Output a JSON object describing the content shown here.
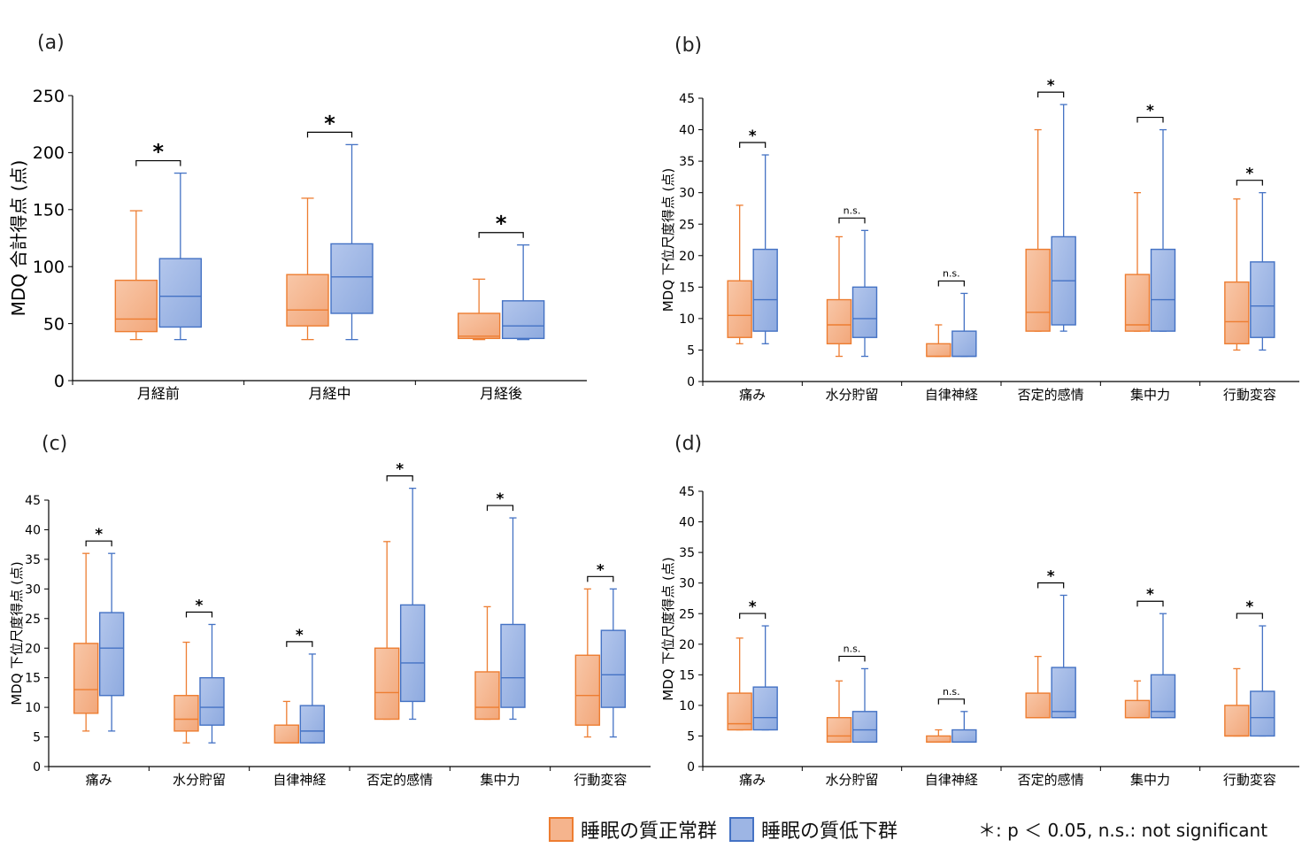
{
  "colors": {
    "normal_fill": "#f5b48d",
    "normal_stroke": "#ed7d31",
    "low_fill": "#9db5e4",
    "low_stroke": "#4472c4"
  },
  "legend": {
    "normal": "睡眠の質正常群",
    "low": "睡眠の質低下群"
  },
  "footnote": "＊: p ＜ 0.05,  n.s.: not significant",
  "chart_data": [
    {
      "type": "box",
      "panel_label": "(a)",
      "ylabel": "MDQ 合計得点 (点)",
      "ylim": [
        0,
        250
      ],
      "yticks": [
        0,
        50,
        100,
        150,
        200,
        250
      ],
      "categories": [
        "月経前",
        "月経中",
        "月経後"
      ],
      "significance": [
        "*",
        "*",
        "*"
      ],
      "series": [
        {
          "group": "normal",
          "boxes": [
            {
              "min": 36,
              "q1": 43,
              "median": 54,
              "q3": 88,
              "max": 149
            },
            {
              "min": 36,
              "q1": 48,
              "median": 62,
              "q3": 93,
              "max": 160
            },
            {
              "min": 36,
              "q1": 37,
              "median": 39,
              "q3": 59,
              "max": 89
            }
          ]
        },
        {
          "group": "low",
          "boxes": [
            {
              "min": 36,
              "q1": 47,
              "median": 74,
              "q3": 107,
              "max": 182
            },
            {
              "min": 36,
              "q1": 59,
              "median": 91,
              "q3": 120,
              "max": 207
            },
            {
              "min": 36,
              "q1": 37,
              "median": 48,
              "q3": 70,
              "max": 119
            }
          ]
        }
      ]
    },
    {
      "type": "box",
      "panel_label": "(b)",
      "ylabel": "MDQ 下位尺度得点 (点)",
      "ylim": [
        0,
        45
      ],
      "yticks": [
        0,
        5,
        10,
        15,
        20,
        25,
        30,
        35,
        40,
        45
      ],
      "categories": [
        "痛み",
        "水分貯留",
        "自律神経",
        "否定的感情",
        "集中力",
        "行動変容"
      ],
      "significance": [
        "*",
        "n.s.",
        "n.s.",
        "*",
        "*",
        "*"
      ],
      "series": [
        {
          "group": "normal",
          "boxes": [
            {
              "min": 6,
              "q1": 7,
              "median": 10.5,
              "q3": 16,
              "max": 28
            },
            {
              "min": 4,
              "q1": 6,
              "median": 9,
              "q3": 13,
              "max": 23
            },
            {
              "min": 4,
              "q1": 4,
              "median": 4,
              "q3": 6,
              "max": 9
            },
            {
              "min": 8,
              "q1": 8,
              "median": 11,
              "q3": 21,
              "max": 40
            },
            {
              "min": 8,
              "q1": 8,
              "median": 9,
              "q3": 17,
              "max": 30
            },
            {
              "min": 5,
              "q1": 6,
              "median": 9.5,
              "q3": 15.8,
              "max": 29
            }
          ]
        },
        {
          "group": "low",
          "boxes": [
            {
              "min": 6,
              "q1": 8,
              "median": 13,
              "q3": 21,
              "max": 36
            },
            {
              "min": 4,
              "q1": 7,
              "median": 10,
              "q3": 15,
              "max": 24
            },
            {
              "min": 4,
              "q1": 4,
              "median": 4,
              "q3": 8,
              "max": 14
            },
            {
              "min": 8,
              "q1": 9,
              "median": 16,
              "q3": 23,
              "max": 44
            },
            {
              "min": 8,
              "q1": 8,
              "median": 13,
              "q3": 21,
              "max": 40
            },
            {
              "min": 5,
              "q1": 7,
              "median": 12,
              "q3": 19,
              "max": 30
            }
          ]
        }
      ]
    },
    {
      "type": "box",
      "panel_label": "(c)",
      "ylabel": "MDQ 下位尺度得点 (点)",
      "ylim": [
        0,
        45
      ],
      "yticks": [
        0,
        5,
        10,
        15,
        20,
        25,
        30,
        35,
        40,
        45
      ],
      "categories": [
        "痛み",
        "水分貯留",
        "自律神経",
        "否定的感情",
        "集中力",
        "行動変容"
      ],
      "significance": [
        "*",
        "*",
        "*",
        "*",
        "*",
        "*"
      ],
      "series": [
        {
          "group": "normal",
          "boxes": [
            {
              "min": 6,
              "q1": 9,
              "median": 13,
              "q3": 20.8,
              "max": 36
            },
            {
              "min": 4,
              "q1": 6,
              "median": 8,
              "q3": 12,
              "max": 21
            },
            {
              "min": 4,
              "q1": 4,
              "median": 4,
              "q3": 7,
              "max": 11
            },
            {
              "min": 8,
              "q1": 8,
              "median": 12.5,
              "q3": 20,
              "max": 38
            },
            {
              "min": 8,
              "q1": 8,
              "median": 10,
              "q3": 16,
              "max": 27
            },
            {
              "min": 5,
              "q1": 7,
              "median": 12,
              "q3": 18.8,
              "max": 30
            }
          ]
        },
        {
          "group": "low",
          "boxes": [
            {
              "min": 6,
              "q1": 12,
              "median": 20,
              "q3": 26,
              "max": 36
            },
            {
              "min": 4,
              "q1": 7,
              "median": 10,
              "q3": 15,
              "max": 24
            },
            {
              "min": 4,
              "q1": 4,
              "median": 6,
              "q3": 10.3,
              "max": 19
            },
            {
              "min": 8,
              "q1": 11,
              "median": 17.5,
              "q3": 27.3,
              "max": 47
            },
            {
              "min": 8,
              "q1": 10,
              "median": 15,
              "q3": 24,
              "max": 42
            },
            {
              "min": 5,
              "q1": 10,
              "median": 15.5,
              "q3": 23,
              "max": 30
            }
          ]
        }
      ]
    },
    {
      "type": "box",
      "panel_label": "(d)",
      "ylabel": "MDQ 下位尺度得点 (点)",
      "ylim": [
        0,
        45
      ],
      "yticks": [
        0,
        5,
        10,
        15,
        20,
        25,
        30,
        35,
        40,
        45
      ],
      "categories": [
        "痛み",
        "水分貯留",
        "自律神経",
        "否定的感情",
        "集中力",
        "行動変容"
      ],
      "significance": [
        "*",
        "n.s.",
        "n.s.",
        "*",
        "*",
        "*"
      ],
      "series": [
        {
          "group": "normal",
          "boxes": [
            {
              "min": 6,
              "q1": 6,
              "median": 7,
              "q3": 12,
              "max": 21
            },
            {
              "min": 4,
              "q1": 4,
              "median": 5,
              "q3": 8,
              "max": 14
            },
            {
              "min": 4,
              "q1": 4,
              "median": 4,
              "q3": 5,
              "max": 6
            },
            {
              "min": 8,
              "q1": 8,
              "median": 8,
              "q3": 12,
              "max": 18
            },
            {
              "min": 8,
              "q1": 8,
              "median": 8,
              "q3": 10.8,
              "max": 14
            },
            {
              "min": 5,
              "q1": 5,
              "median": 5,
              "q3": 10,
              "max": 16
            }
          ]
        },
        {
          "group": "low",
          "boxes": [
            {
              "min": 6,
              "q1": 6,
              "median": 8,
              "q3": 13,
              "max": 23
            },
            {
              "min": 4,
              "q1": 4,
              "median": 6,
              "q3": 9,
              "max": 16
            },
            {
              "min": 4,
              "q1": 4,
              "median": 4,
              "q3": 6,
              "max": 9
            },
            {
              "min": 8,
              "q1": 8,
              "median": 9,
              "q3": 16.2,
              "max": 28
            },
            {
              "min": 8,
              "q1": 8,
              "median": 9,
              "q3": 15,
              "max": 25
            },
            {
              "min": 5,
              "q1": 5,
              "median": 8,
              "q3": 12.3,
              "max": 23
            }
          ]
        }
      ]
    }
  ]
}
